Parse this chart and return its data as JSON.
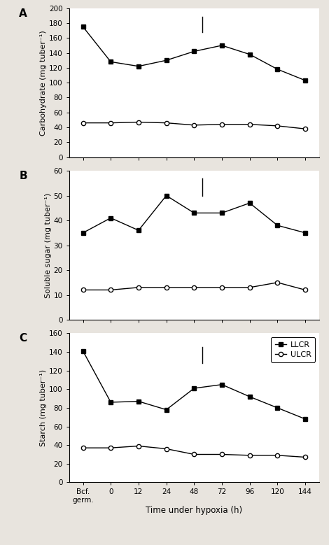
{
  "x_labels": [
    "Bcf.\ngerm.",
    "0",
    "12",
    "24",
    "48",
    "72",
    "96",
    "120",
    "144"
  ],
  "x_positions": [
    0,
    1,
    2,
    3,
    4,
    5,
    6,
    7,
    8
  ],
  "panel_A": {
    "label": "A",
    "ylabel": "Carbohydrate (mg tuber⁻¹)",
    "ylim": [
      0,
      200
    ],
    "yticks": [
      0,
      20,
      40,
      60,
      80,
      100,
      120,
      140,
      160,
      180,
      200
    ],
    "LLCR": [
      175,
      128,
      122,
      130,
      142,
      150,
      138,
      118,
      103
    ],
    "ULCR": [
      46,
      46,
      47,
      46,
      43,
      44,
      44,
      42,
      38
    ],
    "vline_x": 4.3,
    "vline_y": [
      168,
      188
    ]
  },
  "panel_B": {
    "label": "B",
    "ylabel": "Soluble sugar (mg tuber⁻¹)",
    "ylim": [
      0,
      60
    ],
    "yticks": [
      0,
      10,
      20,
      30,
      40,
      50,
      60
    ],
    "LLCR": [
      35,
      41,
      36,
      50,
      43,
      43,
      47,
      38,
      35
    ],
    "ULCR": [
      12,
      12,
      13,
      13,
      13,
      13,
      13,
      15,
      12
    ],
    "vline_x": 4.3,
    "vline_y": [
      50,
      57
    ]
  },
  "panel_C": {
    "label": "C",
    "ylabel": "Starch (mg tuber⁻¹)",
    "ylim": [
      0,
      160
    ],
    "yticks": [
      0,
      20,
      40,
      60,
      80,
      100,
      120,
      140,
      160
    ],
    "LLCR": [
      141,
      86,
      87,
      78,
      101,
      105,
      92,
      80,
      68
    ],
    "ULCR": [
      37,
      37,
      39,
      36,
      30,
      30,
      29,
      29,
      27
    ],
    "vline_x": 4.3,
    "vline_y": [
      128,
      145
    ]
  },
  "xlabel": "Time under hypoxia (h)",
  "legend_LLCR": "LLCR",
  "legend_ULCR": "ULCR",
  "line_color": "#000000",
  "marker_filled": "s",
  "marker_open": "o",
  "markersize": 4.5,
  "linewidth": 1.0,
  "background_color": "#e8e4de",
  "panel_bg": "#ffffff"
}
